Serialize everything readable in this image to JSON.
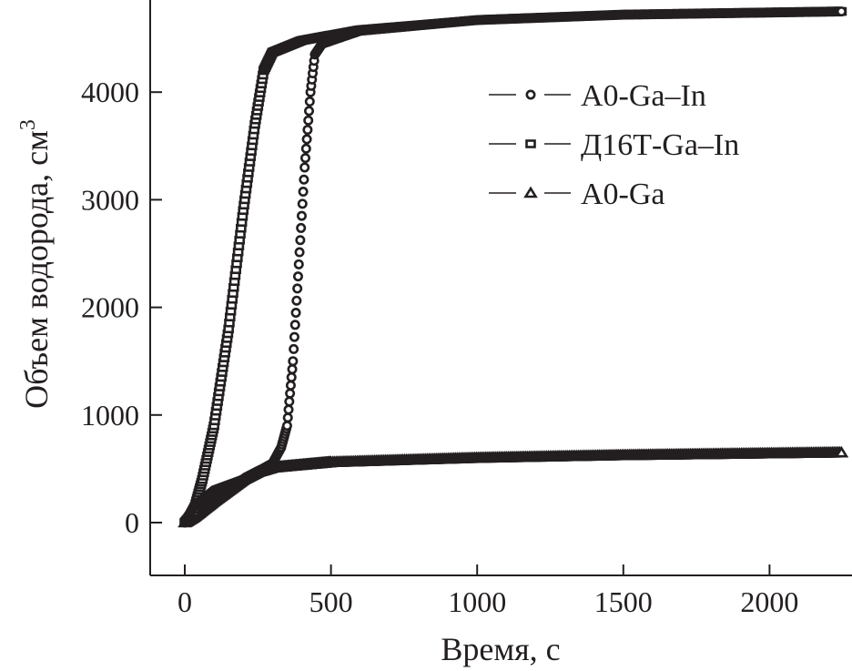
{
  "chart_data": {
    "type": "scatter",
    "title": "",
    "xlabel": "Время, с",
    "ylabel": "Объем водорода, см",
    "ylabel_sup": "3",
    "xlim": [
      -120,
      2300
    ],
    "ylim": [
      -500,
      4900
    ],
    "xticks": [
      0,
      500,
      1000,
      1500,
      2000
    ],
    "yticks": [
      0,
      1000,
      2000,
      3000,
      4000
    ],
    "xtick_labels": [
      "0",
      "500",
      "1000",
      "1500",
      "2000"
    ],
    "ytick_labels": [
      "0",
      "1000",
      "2000",
      "3000",
      "4000"
    ],
    "grid": false,
    "legend_position": "top-right",
    "series": [
      {
        "name": "A0-Ga–In",
        "marker": "circle",
        "points": [
          [
            0,
            0
          ],
          [
            30,
            150
          ],
          [
            100,
            300
          ],
          [
            200,
            400
          ],
          [
            300,
            550
          ],
          [
            330,
            700
          ],
          [
            350,
            900
          ],
          [
            370,
            1500
          ],
          [
            390,
            2400
          ],
          [
            410,
            3300
          ],
          [
            430,
            4000
          ],
          [
            445,
            4350
          ],
          [
            470,
            4450
          ],
          [
            600,
            4570
          ],
          [
            1000,
            4670
          ],
          [
            1500,
            4720
          ],
          [
            2250,
            4750
          ]
        ]
      },
      {
        "name": "Д16Т-Ga–In",
        "marker": "square",
        "points": [
          [
            0,
            0
          ],
          [
            30,
            100
          ],
          [
            60,
            400
          ],
          [
            100,
            900
          ],
          [
            150,
            1800
          ],
          [
            200,
            2900
          ],
          [
            240,
            3700
          ],
          [
            270,
            4200
          ],
          [
            300,
            4370
          ],
          [
            400,
            4480
          ],
          [
            600,
            4580
          ],
          [
            1000,
            4670
          ],
          [
            1500,
            4720
          ],
          [
            2250,
            4750
          ]
        ]
      },
      {
        "name": "A0-Ga",
        "marker": "triangle",
        "points": [
          [
            0,
            0
          ],
          [
            30,
            50
          ],
          [
            100,
            200
          ],
          [
            200,
            400
          ],
          [
            250,
            470
          ],
          [
            300,
            510
          ],
          [
            500,
            560
          ],
          [
            1000,
            600
          ],
          [
            1500,
            625
          ],
          [
            2250,
            650
          ]
        ]
      }
    ]
  }
}
